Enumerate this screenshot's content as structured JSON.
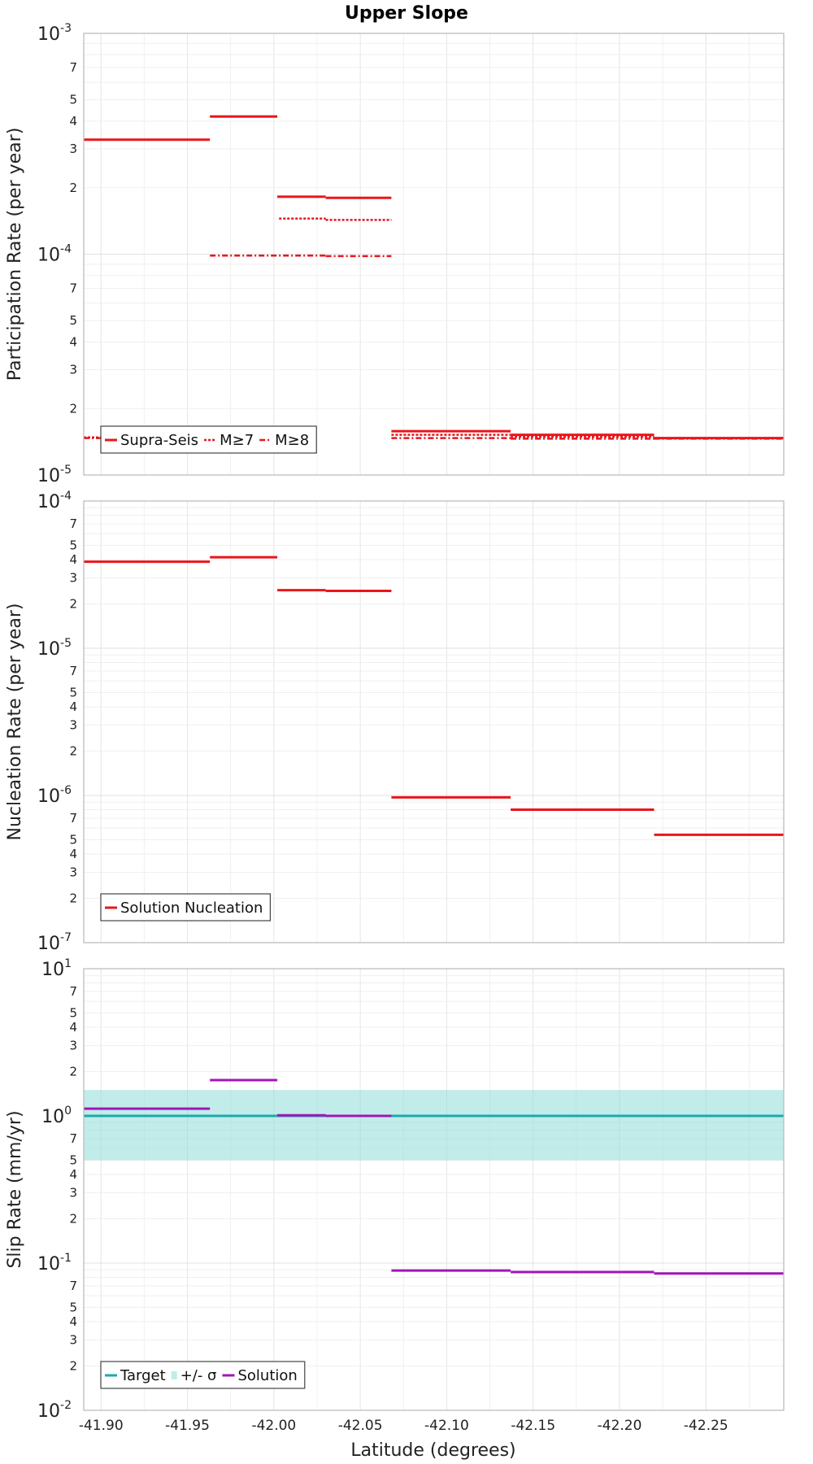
{
  "figure": {
    "title": "Upper Slope",
    "xlabel": "Latitude (degrees)"
  },
  "chart_data": [
    {
      "type": "line",
      "name": "participation",
      "ylabel": "Participation Rate (per year)",
      "yscale": "log",
      "ylim": [
        1e-05,
        0.001
      ],
      "xlim": [
        -41.89,
        -42.295
      ],
      "x_ticks": [
        -41.9,
        -41.95,
        -42.0,
        -42.05,
        -42.1,
        -42.15,
        -42.2,
        -42.25
      ],
      "grid": true,
      "legend_position": "bottom-left",
      "series": [
        {
          "name": "Supra-Seis",
          "style": "solid",
          "color": "#e8161c",
          "segments": [
            {
              "x": [
                -41.89,
                -41.963
              ],
              "y": 0.00033
            },
            {
              "x": [
                -41.963,
                -42.002
              ],
              "y": 0.00042
            },
            {
              "x": [
                -42.002,
                -42.03
              ],
              "y": 0.000182
            },
            {
              "x": [
                -42.03,
                -42.068
              ],
              "y": 0.00018
            },
            {
              "x": [
                -42.068,
                -42.137
              ],
              "y": 1.58e-05
            },
            {
              "x": [
                -42.137,
                -42.22
              ],
              "y": 1.52e-05
            },
            {
              "x": [
                -42.22,
                -42.295
              ],
              "y": 1.47e-05
            }
          ]
        },
        {
          "name": "M≥7",
          "style": "dotted",
          "color": "#e8161c",
          "segments": [
            {
              "x": [
                -41.89,
                -41.963
              ],
              "y": 1.48e-05
            },
            {
              "x": [
                -42.003,
                -42.03
              ],
              "y": 0.000145
            },
            {
              "x": [
                -42.03,
                -42.068
              ],
              "y": 0.000143
            },
            {
              "x": [
                -42.068,
                -42.137
              ],
              "y": 1.52e-05
            },
            {
              "x": [
                -42.137,
                -42.22
              ],
              "y": 1.49e-05
            },
            {
              "x": [
                -42.22,
                -42.295
              ],
              "y": 1.47e-05
            }
          ]
        },
        {
          "name": "M≥8",
          "style": "dashdot",
          "color": "#e8161c",
          "segments": [
            {
              "x": [
                -41.89,
                -41.963
              ],
              "y": 1.47e-05
            },
            {
              "x": [
                -41.963,
                -42.03
              ],
              "y": 9.85e-05
            },
            {
              "x": [
                -42.03,
                -42.068
              ],
              "y": 9.8e-05
            },
            {
              "x": [
                -42.068,
                -42.137
              ],
              "y": 1.47e-05
            },
            {
              "x": [
                -42.137,
                -42.22
              ],
              "y": 1.46e-05
            },
            {
              "x": [
                -42.22,
                -42.295
              ],
              "y": 1.46e-05
            }
          ]
        }
      ]
    },
    {
      "type": "line",
      "name": "nucleation",
      "ylabel": "Nucleation Rate (per year)",
      "yscale": "log",
      "ylim": [
        1e-07,
        0.0001
      ],
      "xlim": [
        -41.89,
        -42.295
      ],
      "x_ticks": [
        -41.9,
        -41.95,
        -42.0,
        -42.05,
        -42.1,
        -42.15,
        -42.2,
        -42.25
      ],
      "grid": true,
      "legend_position": "bottom-left",
      "series": [
        {
          "name": "Solution Nucleation",
          "style": "solid",
          "color": "#e8161c",
          "segments": [
            {
              "x": [
                -41.89,
                -41.963
              ],
              "y": 3.87e-05
            },
            {
              "x": [
                -41.963,
                -42.002
              ],
              "y": 4.15e-05
            },
            {
              "x": [
                -42.002,
                -42.03
              ],
              "y": 2.48e-05
            },
            {
              "x": [
                -42.03,
                -42.068
              ],
              "y": 2.45e-05
            },
            {
              "x": [
                -42.068,
                -42.137
              ],
              "y": 9.7e-07
            },
            {
              "x": [
                -42.137,
                -42.22
              ],
              "y": 8e-07
            },
            {
              "x": [
                -42.22,
                -42.295
              ],
              "y": 5.4e-07
            }
          ]
        }
      ]
    },
    {
      "type": "line",
      "name": "slip",
      "ylabel": "Slip Rate (mm/yr)",
      "yscale": "log",
      "ylim": [
        0.01,
        10
      ],
      "xlim": [
        -41.89,
        -42.295
      ],
      "x_ticks": [
        -41.9,
        -41.95,
        -42.0,
        -42.05,
        -42.1,
        -42.15,
        -42.2,
        -42.25
      ],
      "grid": true,
      "legend_position": "bottom-left",
      "band": {
        "name": "+/- σ",
        "y": [
          0.5,
          1.5
        ],
        "color": "#8fdcd8"
      },
      "series": [
        {
          "name": "Target",
          "style": "solid",
          "color": "#1aaaa8",
          "segments": [
            {
              "x": [
                -41.89,
                -42.295
              ],
              "y": 1.0
            }
          ]
        },
        {
          "name": "Solution",
          "style": "solid",
          "color": "#a314b8",
          "segments": [
            {
              "x": [
                -41.89,
                -41.963
              ],
              "y": 1.12
            },
            {
              "x": [
                -41.963,
                -42.002
              ],
              "y": 1.75
            },
            {
              "x": [
                -42.002,
                -42.03
              ],
              "y": 1.01
            },
            {
              "x": [
                -42.03,
                -42.068
              ],
              "y": 1.0
            },
            {
              "x": [
                -42.068,
                -42.137
              ],
              "y": 0.089
            },
            {
              "x": [
                -42.137,
                -42.22
              ],
              "y": 0.087
            },
            {
              "x": [
                -42.22,
                -42.295
              ],
              "y": 0.085
            }
          ]
        }
      ]
    }
  ]
}
